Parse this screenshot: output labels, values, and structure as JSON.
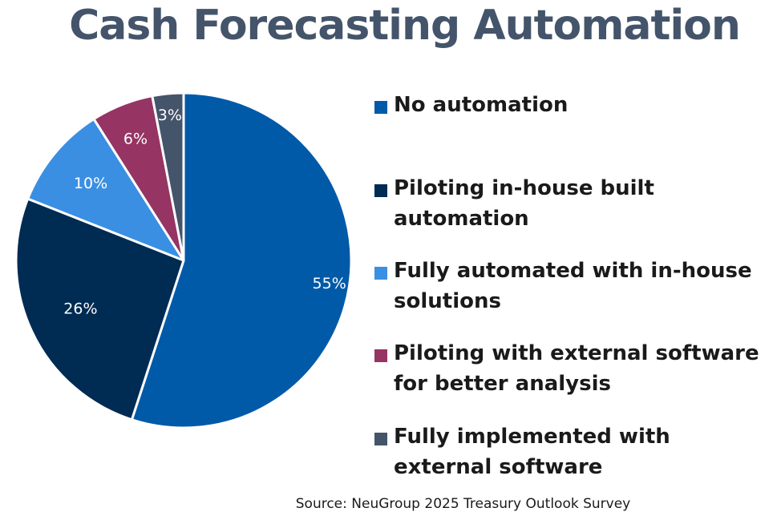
{
  "chart_data": {
    "type": "pie",
    "title": "Cash Forecasting Automation",
    "slices": [
      {
        "label": "No automation",
        "value": 55,
        "display": "55%",
        "color": "#005aa8"
      },
      {
        "label": "Piloting in-house built automation",
        "value": 26,
        "display": "26%",
        "color": "#002b53"
      },
      {
        "label": "Fully automated with in-house solutions",
        "value": 10,
        "display": "10%",
        "color": "#3a8fe3"
      },
      {
        "label": "Piloting with external software for better analysis",
        "value": 6,
        "display": "6%",
        "color": "#963463"
      },
      {
        "label": "Fully implemented with external software",
        "value": 3,
        "display": "3%",
        "color": "#44546a"
      }
    ],
    "start_angle": "12 o'clock",
    "direction": "clockwise",
    "legend_position": "right",
    "source": "Source: NeuGroup 2025 Treasury Outlook Survey"
  }
}
